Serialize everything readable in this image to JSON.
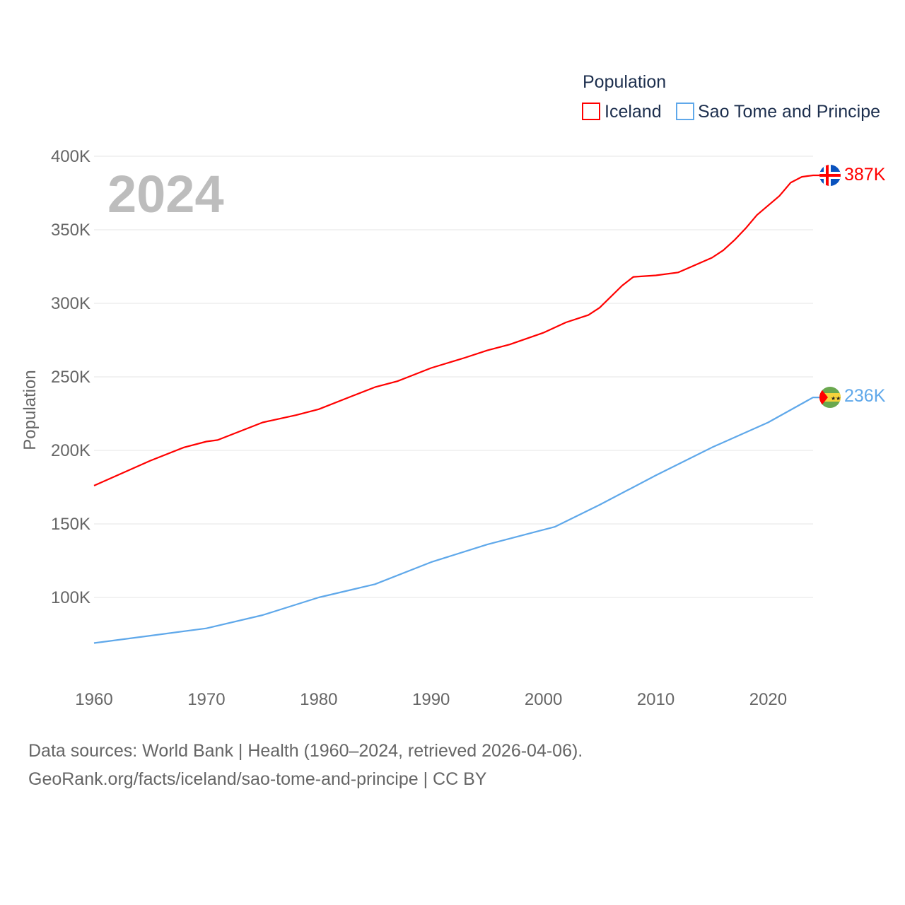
{
  "chart_data": {
    "type": "line",
    "title": "Population",
    "year_label": "2024",
    "xlabel": "",
    "ylabel": "Population",
    "xlim": [
      1960,
      2024
    ],
    "ylim": [
      50000,
      400000
    ],
    "x_ticks": [
      "1960",
      "1970",
      "1980",
      "1990",
      "2000",
      "2010",
      "2020"
    ],
    "y_ticks": [
      "100K",
      "150K",
      "200K",
      "250K",
      "300K",
      "350K",
      "400K"
    ],
    "y_tick_values": [
      100000,
      150000,
      200000,
      250000,
      300000,
      350000,
      400000
    ],
    "grid": true,
    "legend_placement": "top-right",
    "series": [
      {
        "name": "Iceland",
        "color": "#ff0000",
        "end_label": "387K",
        "flag": "iceland-flag",
        "x": [
          1960,
          1965,
          1968,
          1970,
          1971,
          1975,
          1978,
          1980,
          1983,
          1985,
          1987,
          1988,
          1990,
          1993,
          1995,
          1997,
          2000,
          2002,
          2004,
          2005,
          2007,
          2008,
          2010,
          2012,
          2015,
          2016,
          2017,
          2018,
          2019,
          2021,
          2022,
          2023,
          2024
        ],
        "values": [
          176000,
          193000,
          202000,
          206000,
          207000,
          219000,
          224000,
          228000,
          237000,
          243000,
          247000,
          250000,
          256000,
          263000,
          268000,
          272000,
          280000,
          287000,
          292000,
          297000,
          312000,
          318000,
          319000,
          321000,
          331000,
          336000,
          343000,
          351000,
          360000,
          373000,
          382000,
          386000,
          387000
        ]
      },
      {
        "name": "Sao Tome and Principe",
        "color": "#5fa8ea",
        "end_label": "236K",
        "flag": "sao-tome-flag",
        "x": [
          1960,
          1965,
          1970,
          1975,
          1980,
          1985,
          1990,
          1995,
          2000,
          2001,
          2005,
          2010,
          2015,
          2020,
          2024
        ],
        "values": [
          69000,
          74000,
          79000,
          88000,
          100000,
          109000,
          124000,
          136000,
          146000,
          148000,
          163000,
          183000,
          202000,
          219000,
          236000
        ]
      }
    ]
  },
  "footer": {
    "line1": "Data sources: World Bank | Health (1960–2024, retrieved 2026-04-06).",
    "line2": "GeoRank.org/facts/iceland/sao-tome-and-principe | CC BY"
  }
}
